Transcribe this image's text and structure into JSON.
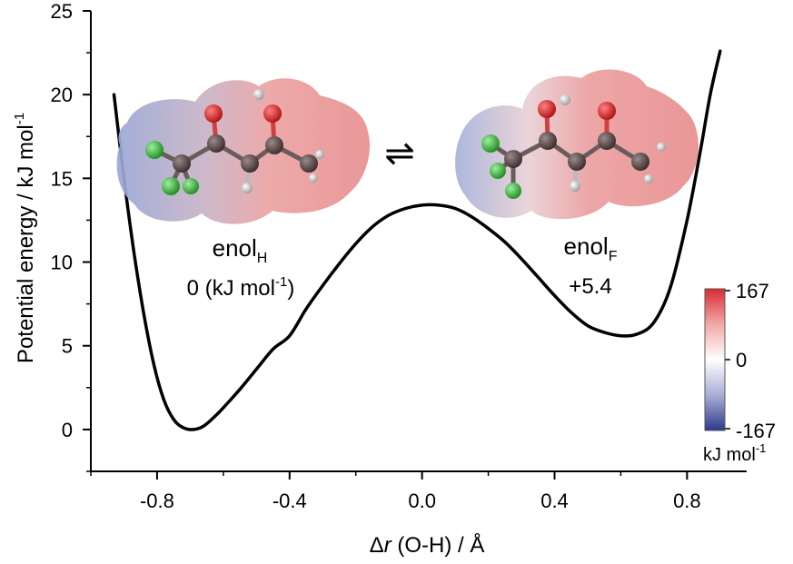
{
  "chart_data": {
    "type": "line",
    "xlabel_symbol": "Δ",
    "xlabel_var": "r",
    "xlabel_rest": " (O-H) / Å",
    "ylabel_main": "Potential energy / kJ mol",
    "ylabel_sup": "-1",
    "xlim": [
      -1.0,
      0.98
    ],
    "ylim": [
      -2.5,
      25
    ],
    "xticks": [
      -0.8,
      -0.4,
      0.0,
      0.4,
      0.8
    ],
    "xtick_labels": [
      "-0.8",
      "-0.4",
      "0.0",
      "0.4",
      "0.8"
    ],
    "yticks": [
      0,
      5,
      10,
      15,
      20,
      25
    ],
    "ytick_labels": [
      "0",
      "5",
      "10",
      "15",
      "20",
      "25"
    ],
    "series": [
      {
        "x": [
          -0.93,
          -0.9,
          -0.87,
          -0.84,
          -0.81,
          -0.78,
          -0.75,
          -0.72,
          -0.69,
          -0.66,
          -0.63,
          -0.6,
          -0.55,
          -0.5,
          -0.45,
          -0.4,
          -0.35,
          -0.3,
          -0.25,
          -0.2,
          -0.15,
          -0.1,
          -0.05,
          0.0,
          0.05,
          0.1,
          0.15,
          0.2,
          0.25,
          0.3,
          0.35,
          0.4,
          0.45,
          0.5,
          0.55,
          0.6,
          0.65,
          0.7,
          0.75,
          0.8,
          0.84,
          0.87,
          0.9
        ],
        "y": [
          20.0,
          15.0,
          10.6,
          6.9,
          3.9,
          1.8,
          0.6,
          0.1,
          0.0,
          0.2,
          0.7,
          1.3,
          2.4,
          3.6,
          4.8,
          5.6,
          7.2,
          8.6,
          9.9,
          11.1,
          12.1,
          12.8,
          13.2,
          13.4,
          13.4,
          13.2,
          12.7,
          12.0,
          11.2,
          10.2,
          9.1,
          8.0,
          7.0,
          6.2,
          5.8,
          5.6,
          5.7,
          6.4,
          8.5,
          12.5,
          16.6,
          20.0,
          22.6
        ]
      }
    ],
    "colorbar": {
      "labels": [
        "167",
        "0",
        "-167"
      ],
      "unit_main": "kJ mol",
      "unit_sup": "-1",
      "colors_top_to_bottom": [
        "#d92b32",
        "#f7c4c4",
        "#ffffff",
        "#c6c8e2",
        "#2d3a8c"
      ]
    }
  },
  "annotations": {
    "left_label_main": "enol",
    "left_label_sub": "H",
    "left_energy_main": "0 (kJ mol",
    "left_energy_sup": "-1",
    "left_energy_end": ")",
    "right_label_main": "enol",
    "right_label_sub": "F",
    "right_energy": "+5.4",
    "equilibrium_arrows": "⇌"
  },
  "colors": {
    "curve": "#000000",
    "surface_red": "#e9a3a3",
    "surface_blue": "#a9b6d9",
    "carbon": "#4a3b3b",
    "oxygen": "#d21f1f",
    "fluorine": "#34b334",
    "hydrogen": "#f2f2f2"
  }
}
